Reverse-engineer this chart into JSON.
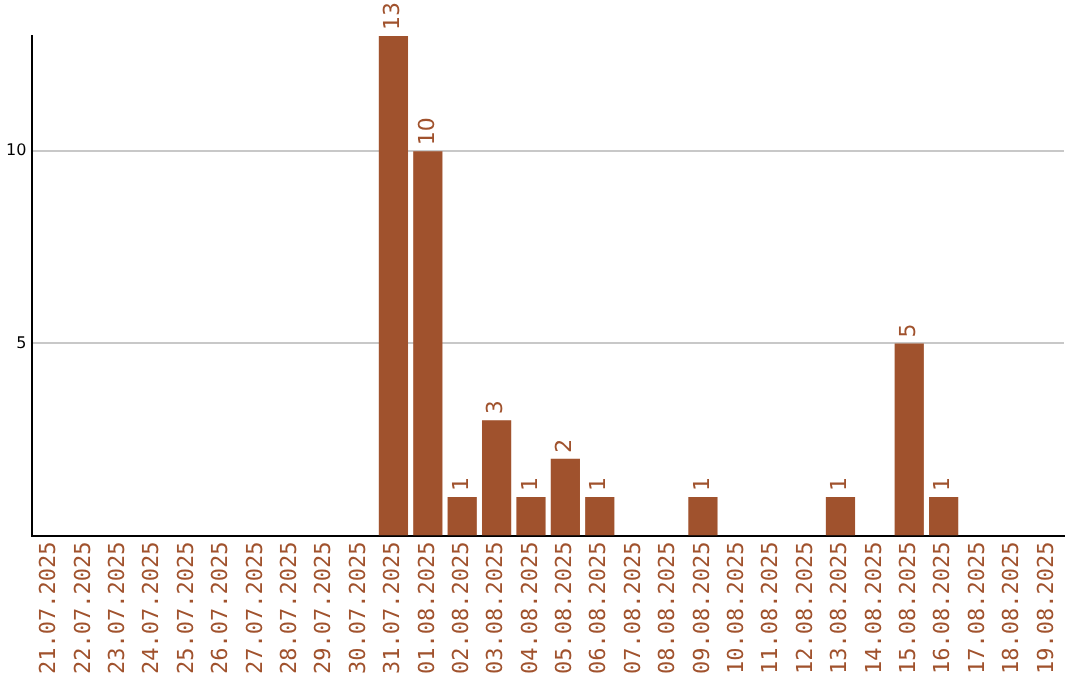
{
  "chart_data": {
    "type": "bar",
    "categories": [
      "21.07.2025",
      "22.07.2025",
      "23.07.2025",
      "24.07.2025",
      "25.07.2025",
      "26.07.2025",
      "27.07.2025",
      "28.07.2025",
      "29.07.2025",
      "30.07.2025",
      "31.07.2025",
      "01.08.2025",
      "02.08.2025",
      "03.08.2025",
      "04.08.2025",
      "05.08.2025",
      "06.08.2025",
      "07.08.2025",
      "08.08.2025",
      "09.08.2025",
      "10.08.2025",
      "11.08.2025",
      "12.08.2025",
      "13.08.2025",
      "14.08.2025",
      "15.08.2025",
      "16.08.2025",
      "17.08.2025",
      "18.08.2025",
      "19.08.2025"
    ],
    "values": [
      null,
      null,
      null,
      null,
      null,
      null,
      null,
      null,
      null,
      null,
      13,
      10,
      1,
      3,
      1,
      2,
      1,
      null,
      null,
      1,
      null,
      null,
      null,
      1,
      null,
      5,
      1,
      null,
      null,
      null
    ],
    "color": "#a0522d",
    "ylim": [
      0,
      13
    ],
    "yticks": [
      5,
      10
    ],
    "grid": "y",
    "data_labels": true,
    "legend": false
  }
}
